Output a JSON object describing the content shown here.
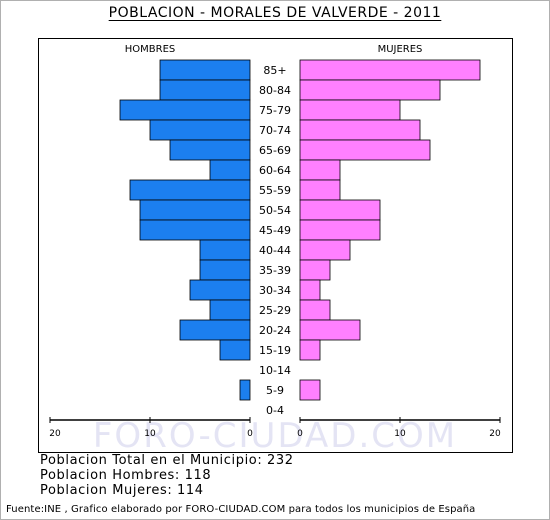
{
  "chart_data": {
    "type": "bar",
    "title": "POBLACION - MORALES DE VALVERDE - 2011",
    "left_label": "HOMBRES",
    "right_label": "MUJERES",
    "categories": [
      "85+",
      "80-84",
      "75-79",
      "70-74",
      "65-69",
      "60-64",
      "55-59",
      "50-54",
      "45-49",
      "40-44",
      "35-39",
      "30-34",
      "25-29",
      "20-24",
      "15-19",
      "10-14",
      "5-9",
      "0-4"
    ],
    "series": [
      {
        "name": "HOMBRES",
        "color": "#1c7fef",
        "values": [
          9,
          9,
          13,
          10,
          8,
          4,
          12,
          11,
          11,
          5,
          5,
          6,
          4,
          7,
          3,
          0,
          1,
          0
        ]
      },
      {
        "name": "MUJERES",
        "color": "#ff80ff",
        "values": [
          18,
          14,
          10,
          12,
          13,
          4,
          4,
          8,
          8,
          5,
          3,
          2,
          3,
          6,
          2,
          0,
          2,
          0
        ]
      }
    ],
    "x_ticks_left": [
      "20",
      "10",
      "0"
    ],
    "x_ticks_right": [
      "0",
      "10",
      "20"
    ],
    "xlim": [
      0,
      20
    ],
    "watermark": "FORO-CIUDAD.COM"
  },
  "summary": {
    "total": "Poblacion Total en el Municipio: 232",
    "men": "Poblacion Hombres: 118",
    "women": "Poblacion Mujeres: 114"
  },
  "footer": "Fuente:INE , Grafico elaborado por FORO-CIUDAD.COM para todos los municipios de España"
}
